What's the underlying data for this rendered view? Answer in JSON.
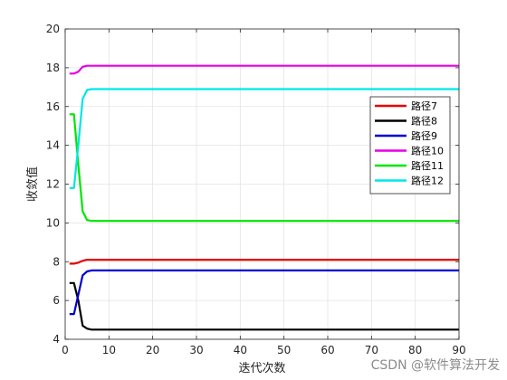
{
  "chart_data": {
    "type": "line",
    "xlabel": "迭代次数",
    "ylabel": "收敛值",
    "xlim": [
      0,
      90
    ],
    "ylim": [
      4,
      20
    ],
    "xticks": [
      0,
      10,
      20,
      30,
      40,
      50,
      60,
      70,
      80,
      90
    ],
    "yticks": [
      4,
      6,
      8,
      10,
      12,
      14,
      16,
      18,
      20
    ],
    "grid": true,
    "legend_position": "right",
    "x": [
      1,
      2,
      3,
      4,
      5,
      6,
      7,
      8,
      10,
      15,
      20,
      30,
      40,
      50,
      60,
      70,
      80,
      90
    ],
    "series": [
      {
        "name": "路径7",
        "color": "#e60000",
        "values": [
          7.9,
          7.9,
          7.95,
          8.05,
          8.1,
          8.1,
          8.1,
          8.1,
          8.1,
          8.1,
          8.1,
          8.1,
          8.1,
          8.1,
          8.1,
          8.1,
          8.1,
          8.1
        ]
      },
      {
        "name": "路径8",
        "color": "#000000",
        "values": [
          6.9,
          6.9,
          6.0,
          4.7,
          4.55,
          4.5,
          4.5,
          4.5,
          4.5,
          4.5,
          4.5,
          4.5,
          4.5,
          4.5,
          4.5,
          4.5,
          4.5,
          4.5
        ]
      },
      {
        "name": "路径9",
        "color": "#0000d0",
        "values": [
          5.3,
          5.3,
          6.3,
          7.3,
          7.5,
          7.55,
          7.55,
          7.55,
          7.55,
          7.55,
          7.55,
          7.55,
          7.55,
          7.55,
          7.55,
          7.55,
          7.55,
          7.55
        ]
      },
      {
        "name": "路径10",
        "color": "#e600e6",
        "values": [
          17.7,
          17.7,
          17.8,
          18.05,
          18.1,
          18.1,
          18.1,
          18.1,
          18.1,
          18.1,
          18.1,
          18.1,
          18.1,
          18.1,
          18.1,
          18.1,
          18.1,
          18.1
        ]
      },
      {
        "name": "路径11",
        "color": "#00e600",
        "values": [
          15.6,
          15.6,
          13.0,
          10.6,
          10.15,
          10.1,
          10.1,
          10.1,
          10.1,
          10.1,
          10.1,
          10.1,
          10.1,
          10.1,
          10.1,
          10.1,
          10.1,
          10.1
        ]
      },
      {
        "name": "路径12",
        "color": "#00e6e6",
        "values": [
          11.8,
          11.8,
          14.0,
          16.4,
          16.85,
          16.9,
          16.9,
          16.9,
          16.9,
          16.9,
          16.9,
          16.9,
          16.9,
          16.9,
          16.9,
          16.9,
          16.9,
          16.9
        ]
      }
    ]
  },
  "watermark": "CSDN @软件算法开发"
}
